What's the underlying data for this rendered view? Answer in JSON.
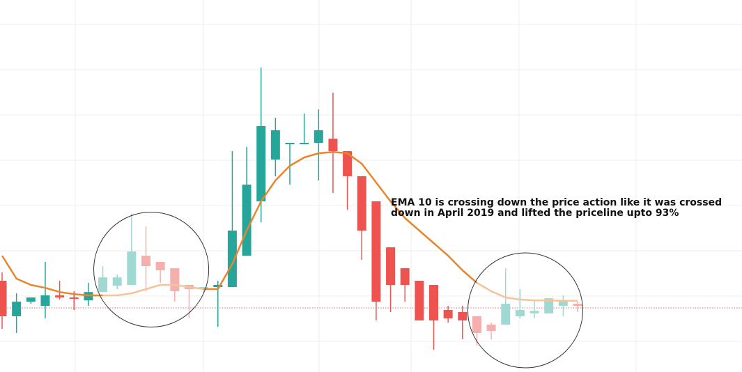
{
  "chart_data": {
    "type": "candlestick",
    "title": "",
    "xlabel": "",
    "ylabel": "",
    "grid": true,
    "ylim": [
      0,
      800
    ],
    "ema_period": 10,
    "ema_values": [
      170,
      115,
      100,
      93,
      83,
      78,
      75,
      75,
      75,
      80,
      90,
      100,
      100,
      95,
      90,
      90,
      150,
      230,
      300,
      350,
      385,
      405,
      415,
      418,
      415,
      390,
      345,
      300,
      260,
      230,
      200,
      170,
      135,
      105,
      85,
      70,
      65,
      63,
      63,
      62,
      62
    ],
    "reference_level": 45,
    "candles": [
      {
        "open": 110,
        "high": 130,
        "low": -5,
        "close": 25
      },
      {
        "open": 25,
        "high": 80,
        "low": -15,
        "close": 60
      },
      {
        "open": 60,
        "high": 70,
        "low": 55,
        "close": 70
      },
      {
        "open": 50,
        "high": 155,
        "low": 20,
        "close": 75
      },
      {
        "open": 75,
        "high": 110,
        "low": 65,
        "close": 70
      },
      {
        "open": 70,
        "high": 85,
        "low": 40,
        "close": 68
      },
      {
        "open": 63,
        "high": 105,
        "low": 50,
        "close": 83
      },
      {
        "open": 83,
        "high": 145,
        "low": 83,
        "close": 118
      },
      {
        "open": 98,
        "high": 125,
        "low": 90,
        "close": 118
      },
      {
        "open": 100,
        "high": 270,
        "low": 100,
        "close": 180
      },
      {
        "open": 170,
        "high": 240,
        "low": 85,
        "close": 145
      },
      {
        "open": 155,
        "high": 155,
        "low": 105,
        "close": 135
      },
      {
        "open": 140,
        "high": 140,
        "low": 60,
        "close": 85
      },
      {
        "open": 100,
        "high": 100,
        "low": 20,
        "close": 90
      },
      {
        "open": 95,
        "high": 95,
        "low": 80,
        "close": 95
      },
      {
        "open": 95,
        "high": 110,
        "low": 0,
        "close": 100
      },
      {
        "open": 95,
        "high": 420,
        "low": 95,
        "close": 230
      },
      {
        "open": 170,
        "high": 430,
        "low": 170,
        "close": 340
      },
      {
        "open": 300,
        "high": 620,
        "low": 250,
        "close": 480
      },
      {
        "open": 400,
        "high": 500,
        "low": 360,
        "close": 470
      },
      {
        "open": 440,
        "high": 440,
        "low": 340,
        "close": 440
      },
      {
        "open": 440,
        "high": 510,
        "low": 440,
        "close": 440
      },
      {
        "open": 440,
        "high": 520,
        "low": 350,
        "close": 470
      },
      {
        "open": 450,
        "high": 560,
        "low": 320,
        "close": 420
      },
      {
        "open": 420,
        "high": 420,
        "low": 280,
        "close": 360
      },
      {
        "open": 360,
        "high": 360,
        "low": 160,
        "close": 230
      },
      {
        "open": 300,
        "high": 300,
        "low": 15,
        "close": 60
      },
      {
        "open": 190,
        "high": 190,
        "low": 35,
        "close": 100
      },
      {
        "open": 140,
        "high": 140,
        "low": 60,
        "close": 100
      },
      {
        "open": 110,
        "high": 110,
        "low": 15,
        "close": 15
      },
      {
        "open": 100,
        "high": 100,
        "low": -55,
        "close": 15
      },
      {
        "open": 40,
        "high": 50,
        "low": 10,
        "close": 20
      },
      {
        "open": 35,
        "high": 50,
        "low": -30,
        "close": 15
      },
      {
        "open": 25,
        "high": 25,
        "low": -45,
        "close": -15
      },
      {
        "open": 5,
        "high": 10,
        "low": -30,
        "close": -10
      },
      {
        "open": 5,
        "high": 140,
        "low": 5,
        "close": 55
      },
      {
        "open": 25,
        "high": 90,
        "low": 20,
        "close": 40
      },
      {
        "open": 32,
        "high": 65,
        "low": 20,
        "close": 38
      },
      {
        "open": 32,
        "high": 68,
        "low": 32,
        "close": 68
      },
      {
        "open": 50,
        "high": 75,
        "low": 25,
        "close": 62
      },
      {
        "open": 55,
        "high": 60,
        "low": 35,
        "close": 50
      }
    ],
    "highlight_circles": [
      {
        "from_candle": 7,
        "to_candle": 14
      },
      {
        "from_candle": 33,
        "to_candle": 40
      }
    ],
    "annotation": "EMA 10 is crossing down the price action like it was crossed down in April 2019 and lifted the priceline upto 93%"
  },
  "colors": {
    "up": "#26a69a",
    "down": "#ef5350",
    "up_faded": "#9fd9d2",
    "down_faded": "#f5b0ae",
    "ema": "#e8862c",
    "ema_faded": "#f5c49a",
    "grid": "#ececec",
    "reference_line": "#e86d6d",
    "circle": "#333333"
  }
}
